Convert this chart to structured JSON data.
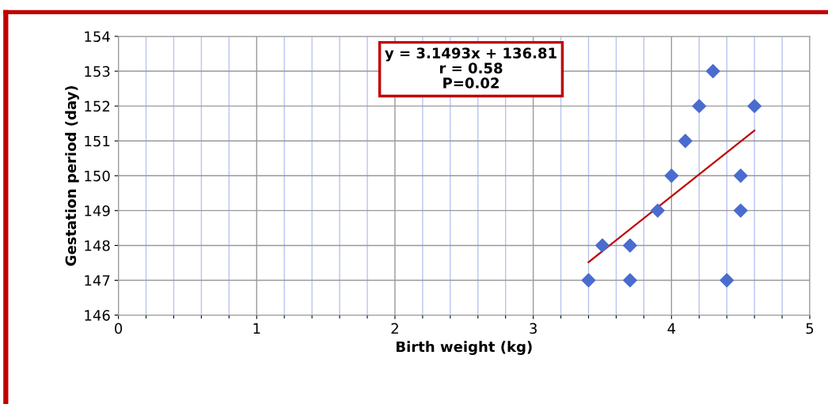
{
  "chart_data": {
    "type": "scatter",
    "xlabel": "Birth weight (kg)",
    "ylabel": "Gestation period (day)",
    "annotations": [
      "y = 3.1493x + 136.81\nr = 0.58\nP=0.02"
    ],
    "series": [
      {
        "color": "#4a6ccf",
        "marker": "diamond",
        "x": [
          3.4,
          3.5,
          3.7,
          3.7,
          3.9,
          4.0,
          4.1,
          4.2,
          4.3,
          4.4,
          4.5,
          4.5,
          4.6
        ],
        "values": [
          147,
          148,
          148,
          147,
          149,
          150,
          151,
          152,
          153,
          147,
          150,
          149,
          152
        ]
      },
      {
        "type": "line",
        "color": "#c00000",
        "x": [
          3.4,
          4.6
        ],
        "values": [
          147.52,
          151.3
        ]
      }
    ],
    "xlim": [
      0,
      5
    ],
    "ylim": [
      146,
      154
    ],
    "xticks": [
      0,
      {
        "value": 0.2,
        "label": null
      },
      {
        "value": 0.4,
        "label": null
      },
      {
        "value": 0.6,
        "label": null
      },
      {
        "value": 0.8,
        "label": null
      },
      1,
      {
        "value": 1.2,
        "label": null
      },
      {
        "value": 1.4,
        "label": null
      },
      {
        "value": 1.6,
        "label": null
      },
      {
        "value": 1.8,
        "label": null
      },
      2,
      {
        "value": 2.2,
        "label": null
      },
      {
        "value": 2.4,
        "label": null
      },
      {
        "value": 2.6,
        "label": null
      },
      {
        "value": 2.8,
        "label": null
      },
      3,
      {
        "value": 3.2,
        "label": null
      },
      {
        "value": 3.4,
        "label": null
      },
      {
        "value": 3.6,
        "label": null
      },
      {
        "value": 3.8,
        "label": null
      },
      4,
      {
        "value": 4.2,
        "label": null
      },
      {
        "value": 4.4,
        "label": null
      },
      {
        "value": 4.6,
        "label": null
      },
      {
        "value": 4.8,
        "label": null
      },
      5
    ],
    "yticks": [
      146,
      147,
      148,
      149,
      150,
      151,
      152,
      153,
      154
    ],
    "grid": true
  }
}
